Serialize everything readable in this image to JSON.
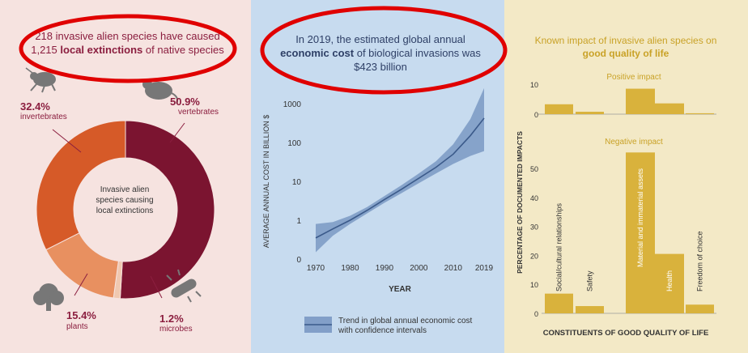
{
  "panel1": {
    "headline_part1": "218 invasive alien species have caused 1,215",
    "headline_bold": "local extinctions",
    "headline_part2": "of native species",
    "center_label": "Invasive alien species causing local extinctions",
    "segments": [
      {
        "percent": "50.9%",
        "label": "vertebrates",
        "value": 50.9,
        "color": "#7b1430"
      },
      {
        "percent": "1.2%",
        "label": "microbes",
        "value": 1.2,
        "color": "#f0c8b0"
      },
      {
        "percent": "15.4%",
        "label": "plants",
        "value": 15.4,
        "color": "#e89060"
      },
      {
        "percent": "32.4%",
        "label": "invertebrates",
        "value": 32.4,
        "color": "#d65a28"
      }
    ]
  },
  "panel2": {
    "headline_part1": "In 2019, the estimated global annual",
    "headline_bold": "economic cost",
    "headline_part2": "of biological invasions was $423 billion",
    "legend": "Trend in global annual economic cost with confidence intervals"
  },
  "panel3": {
    "headline_part1": "Known impact of invasive alien species on",
    "headline_bold": "good quality of life",
    "positive_title": "Positive impact",
    "negative_title": "Negative impact"
  },
  "colors": {
    "ring_bg": "#f6e3e0",
    "accent": "#8b1e3f",
    "band": "#6b8bbb",
    "line": "#3b5a8a",
    "gold": "#d9b23c",
    "gold_text": "#c9a227"
  },
  "chart_data": [
    {
      "type": "pie",
      "title": "Invasive alien species causing local extinctions",
      "categories": [
        "vertebrates",
        "microbes",
        "plants",
        "invertebrates"
      ],
      "values": [
        50.9,
        1.2,
        15.4,
        32.4
      ]
    },
    {
      "type": "line",
      "xlabel": "YEAR",
      "ylabel": "AVERAGE ANNUAL COST IN BILLION $",
      "yscale": "log",
      "xticks": [
        "1970",
        "1980",
        "1990",
        "2000",
        "2010",
        "2019"
      ],
      "yticks": [
        "0",
        "1",
        "10",
        "100",
        "1000"
      ],
      "x": [
        1970,
        1975,
        1980,
        1985,
        1990,
        1995,
        2000,
        2005,
        2010,
        2015,
        2019
      ],
      "y": [
        0.35,
        0.6,
        1.0,
        1.8,
        3.4,
        6.3,
        12,
        23,
        50,
        150,
        423
      ],
      "y_lower": [
        0.15,
        0.4,
        0.8,
        1.5,
        2.8,
        5.0,
        9,
        16,
        28,
        45,
        60
      ],
      "y_upper": [
        0.8,
        0.9,
        1.3,
        2.2,
        4.2,
        8.0,
        16,
        33,
        90,
        400,
        2500
      ],
      "series": [
        {
          "name": "Trend in global annual economic cost with confidence intervals"
        }
      ]
    },
    {
      "type": "bar",
      "title": "Positive impact",
      "categories": [
        "Social/cultural relationships",
        "Safety",
        "Material and immaterial assets",
        "Health",
        "Freedom of choice"
      ],
      "values": [
        3.3,
        0.8,
        8.5,
        3.6,
        0.3
      ],
      "ylim": [
        0,
        10
      ],
      "yticks": [
        "0",
        "10"
      ]
    },
    {
      "type": "bar",
      "title": "Negative impact",
      "xlabel": "CONSTITUENTS OF GOOD QUALITY OF LIFE",
      "ylabel": "PERCENTAGE OF DOCUMENTED IMPACTS",
      "categories": [
        "Social/cultural relationships",
        "Safety",
        "Material and immaterial assets",
        "Health",
        "Freedom of choice"
      ],
      "values": [
        6.8,
        2.5,
        55.5,
        20.5,
        3.0
      ],
      "ylim": [
        0,
        60
      ],
      "yticks": [
        "0",
        "10",
        "20",
        "30",
        "40",
        "50"
      ]
    }
  ]
}
